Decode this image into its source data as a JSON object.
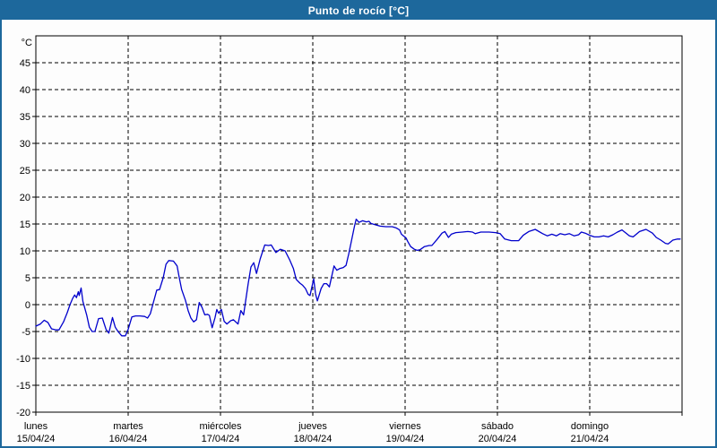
{
  "window": {
    "title": "Punto de rocío [°C]"
  },
  "colors": {
    "titlebar_bg": "#1d689c",
    "titlebar_text": "#ffffff",
    "window_border": "#1d689c",
    "background": "#fdfdfd",
    "grid": "#000000",
    "axis": "#000000",
    "line": "#0000cc",
    "label_text": "#000000"
  },
  "chart_data": {
    "type": "line",
    "title": "Punto de rocío [°C]",
    "y_axis_unit": "°C",
    "ylim": [
      -20,
      50
    ],
    "ytick_step": 5,
    "yticks_labeled": [
      -20,
      -15,
      -10,
      -5,
      0,
      5,
      10,
      15,
      20,
      25,
      30,
      35,
      40,
      45
    ],
    "xlim_days": [
      0,
      7
    ],
    "grid": true,
    "days": [
      {
        "name": "lunes",
        "date": "15/04/24"
      },
      {
        "name": "martes",
        "date": "16/04/24"
      },
      {
        "name": "miércoles",
        "date": "17/04/24"
      },
      {
        "name": "jueves",
        "date": "18/04/24"
      },
      {
        "name": "viernes",
        "date": "19/04/24"
      },
      {
        "name": "sábado",
        "date": "20/04/24"
      },
      {
        "name": "domingo",
        "date": "21/04/24"
      }
    ],
    "series": [
      {
        "name": "Punto de rocío",
        "color": "#0000cc",
        "points": [
          [
            0.0,
            -4.0
          ],
          [
            0.05,
            -3.6
          ],
          [
            0.09,
            -2.9
          ],
          [
            0.13,
            -3.3
          ],
          [
            0.17,
            -4.5
          ],
          [
            0.22,
            -4.7
          ],
          [
            0.25,
            -4.7
          ],
          [
            0.3,
            -3.2
          ],
          [
            0.34,
            -1.5
          ],
          [
            0.37,
            0.0
          ],
          [
            0.4,
            1.2
          ],
          [
            0.42,
            1.8
          ],
          [
            0.44,
            1.3
          ],
          [
            0.46,
            2.4
          ],
          [
            0.47,
            1.7
          ],
          [
            0.49,
            3.1
          ],
          [
            0.51,
            0.6
          ],
          [
            0.55,
            -1.9
          ],
          [
            0.58,
            -4.2
          ],
          [
            0.61,
            -5.0
          ],
          [
            0.64,
            -5.0
          ],
          [
            0.68,
            -2.6
          ],
          [
            0.72,
            -2.5
          ],
          [
            0.76,
            -4.6
          ],
          [
            0.79,
            -5.3
          ],
          [
            0.83,
            -2.4
          ],
          [
            0.86,
            -4.2
          ],
          [
            0.89,
            -5.0
          ],
          [
            0.93,
            -5.8
          ],
          [
            0.97,
            -5.8
          ],
          [
            1.0,
            -4.6
          ],
          [
            1.04,
            -2.3
          ],
          [
            1.08,
            -2.1
          ],
          [
            1.13,
            -2.1
          ],
          [
            1.18,
            -2.2
          ],
          [
            1.21,
            -2.5
          ],
          [
            1.24,
            -1.7
          ],
          [
            1.28,
            0.8
          ],
          [
            1.31,
            2.7
          ],
          [
            1.34,
            2.8
          ],
          [
            1.38,
            5.0
          ],
          [
            1.41,
            7.5
          ],
          [
            1.44,
            8.2
          ],
          [
            1.49,
            8.1
          ],
          [
            1.53,
            7.2
          ],
          [
            1.55,
            5.3
          ],
          [
            1.58,
            2.8
          ],
          [
            1.62,
            0.8
          ],
          [
            1.65,
            -1.1
          ],
          [
            1.68,
            -2.5
          ],
          [
            1.71,
            -3.2
          ],
          [
            1.74,
            -2.8
          ],
          [
            1.77,
            0.4
          ],
          [
            1.8,
            -0.5
          ],
          [
            1.83,
            -1.9
          ],
          [
            1.86,
            -1.8
          ],
          [
            1.88,
            -2.0
          ],
          [
            1.91,
            -4.3
          ],
          [
            1.94,
            -2.5
          ],
          [
            1.96,
            -0.9
          ],
          [
            1.98,
            -1.6
          ],
          [
            2.01,
            -0.9
          ],
          [
            2.04,
            -3.1
          ],
          [
            2.07,
            -3.6
          ],
          [
            2.11,
            -3.0
          ],
          [
            2.14,
            -2.8
          ],
          [
            2.19,
            -3.6
          ],
          [
            2.22,
            -1.1
          ],
          [
            2.25,
            -1.9
          ],
          [
            2.3,
            3.9
          ],
          [
            2.33,
            7.0
          ],
          [
            2.36,
            7.8
          ],
          [
            2.39,
            5.8
          ],
          [
            2.43,
            8.5
          ],
          [
            2.48,
            11.1
          ],
          [
            2.52,
            11.0
          ],
          [
            2.55,
            11.1
          ],
          [
            2.6,
            9.7
          ],
          [
            2.65,
            10.3
          ],
          [
            2.7,
            10.0
          ],
          [
            2.75,
            8.3
          ],
          [
            2.79,
            6.7
          ],
          [
            2.82,
            4.7
          ],
          [
            2.86,
            4.0
          ],
          [
            2.89,
            3.6
          ],
          [
            2.92,
            3.0
          ],
          [
            2.95,
            1.9
          ],
          [
            2.97,
            1.7
          ],
          [
            3.01,
            4.8
          ],
          [
            3.03,
            2.0
          ],
          [
            3.05,
            0.7
          ],
          [
            3.09,
            3.0
          ],
          [
            3.12,
            3.9
          ],
          [
            3.15,
            3.9
          ],
          [
            3.18,
            3.3
          ],
          [
            3.23,
            7.2
          ],
          [
            3.26,
            6.4
          ],
          [
            3.29,
            6.7
          ],
          [
            3.33,
            6.9
          ],
          [
            3.36,
            7.3
          ],
          [
            3.39,
            9.5
          ],
          [
            3.42,
            12.0
          ],
          [
            3.45,
            14.5
          ],
          [
            3.47,
            15.9
          ],
          [
            3.5,
            15.3
          ],
          [
            3.54,
            15.6
          ],
          [
            3.58,
            15.4
          ],
          [
            3.61,
            15.5
          ],
          [
            3.63,
            15.1
          ],
          [
            3.67,
            14.9
          ],
          [
            3.73,
            14.6
          ],
          [
            3.79,
            14.5
          ],
          [
            3.86,
            14.5
          ],
          [
            3.9,
            14.3
          ],
          [
            3.94,
            13.9
          ],
          [
            3.96,
            13.1
          ],
          [
            4.01,
            12.4
          ],
          [
            4.03,
            11.7
          ],
          [
            4.06,
            10.8
          ],
          [
            4.1,
            10.3
          ],
          [
            4.13,
            10.1
          ],
          [
            4.16,
            10.2
          ],
          [
            4.21,
            10.8
          ],
          [
            4.26,
            11.0
          ],
          [
            4.29,
            11.0
          ],
          [
            4.35,
            12.2
          ],
          [
            4.4,
            13.3
          ],
          [
            4.43,
            13.6
          ],
          [
            4.47,
            12.5
          ],
          [
            4.5,
            13.1
          ],
          [
            4.55,
            13.4
          ],
          [
            4.62,
            13.5
          ],
          [
            4.68,
            13.6
          ],
          [
            4.73,
            13.5
          ],
          [
            4.76,
            13.2
          ],
          [
            4.82,
            13.5
          ],
          [
            4.91,
            13.5
          ],
          [
            4.98,
            13.4
          ],
          [
            5.03,
            13.2
          ],
          [
            5.08,
            12.2
          ],
          [
            5.15,
            11.9
          ],
          [
            5.23,
            11.9
          ],
          [
            5.28,
            12.9
          ],
          [
            5.34,
            13.6
          ],
          [
            5.41,
            14.0
          ],
          [
            5.49,
            13.2
          ],
          [
            5.54,
            12.8
          ],
          [
            5.59,
            13.1
          ],
          [
            5.64,
            12.8
          ],
          [
            5.68,
            13.2
          ],
          [
            5.73,
            13.0
          ],
          [
            5.78,
            13.2
          ],
          [
            5.83,
            12.8
          ],
          [
            5.88,
            13.0
          ],
          [
            5.91,
            13.5
          ],
          [
            5.95,
            13.3
          ],
          [
            6.0,
            12.9
          ],
          [
            6.05,
            12.6
          ],
          [
            6.1,
            12.6
          ],
          [
            6.15,
            12.8
          ],
          [
            6.2,
            12.6
          ],
          [
            6.25,
            13.0
          ],
          [
            6.3,
            13.5
          ],
          [
            6.35,
            13.9
          ],
          [
            6.43,
            12.8
          ],
          [
            6.47,
            12.6
          ],
          [
            6.54,
            13.6
          ],
          [
            6.61,
            14.0
          ],
          [
            6.68,
            13.3
          ],
          [
            6.72,
            12.5
          ],
          [
            6.77,
            12.0
          ],
          [
            6.82,
            11.4
          ],
          [
            6.85,
            11.3
          ],
          [
            6.9,
            12.0
          ],
          [
            6.95,
            12.2
          ],
          [
            6.98,
            12.2
          ]
        ]
      }
    ]
  }
}
